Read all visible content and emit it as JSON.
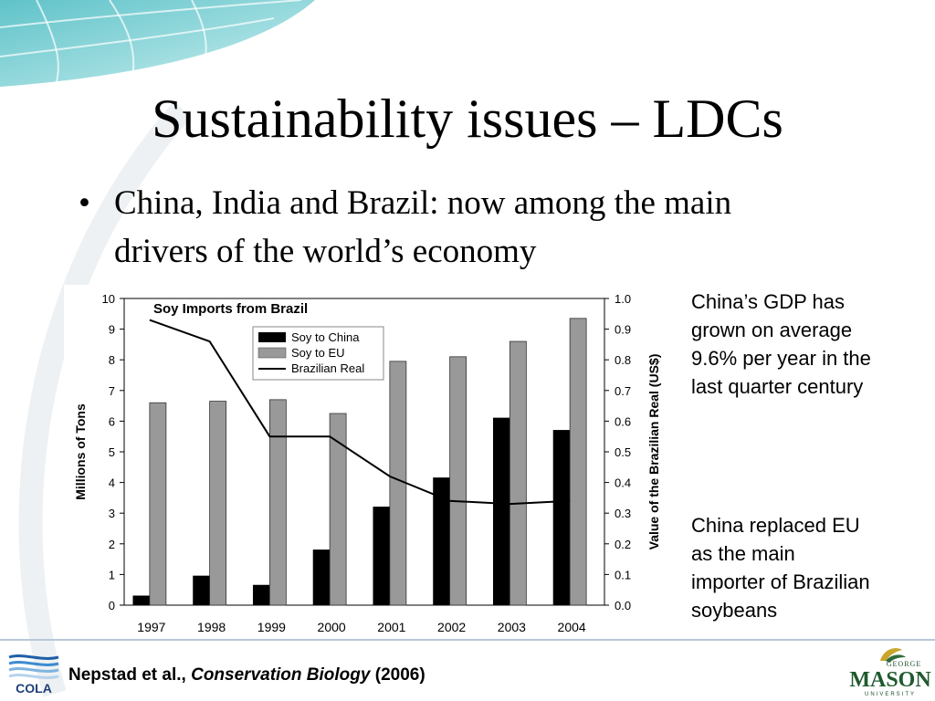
{
  "slide": {
    "title": "Sustainability issues – LDCs",
    "bullet_mark": "•",
    "bullet": "China, India and Brazil: now among the main drivers of the world’s economy"
  },
  "notes": [
    "China’s GDP has grown on average 9.6% per year in the last quarter century",
    "China replaced EU as the main importer of Brazilian soybeans"
  ],
  "citation": {
    "authors": "Nepstad et al.,",
    "journal": "Conservation Biology",
    "year": "(2006)"
  },
  "logos": {
    "cola": "COLA",
    "mason_top": "GEORGE",
    "mason_main": "MASON",
    "mason_bottom": "UNIVERSITY"
  },
  "chart_data": {
    "type": "bar",
    "title": "Soy Imports from Brazil",
    "categories": [
      "1997",
      "1998",
      "1999",
      "2000",
      "2001",
      "2002",
      "2003",
      "2004"
    ],
    "series": [
      {
        "name": "Soy to China",
        "kind": "bar",
        "axis": "left",
        "color": "#000000",
        "values": [
          0.3,
          0.95,
          0.65,
          1.8,
          3.2,
          4.15,
          6.1,
          5.7
        ]
      },
      {
        "name": "Soy to EU",
        "kind": "bar",
        "axis": "left",
        "color": "#999999",
        "values": [
          6.6,
          6.65,
          6.7,
          6.25,
          7.95,
          8.1,
          8.6,
          9.35
        ]
      },
      {
        "name": "Brazilian Real",
        "kind": "line",
        "axis": "right",
        "color": "#000000",
        "values": [
          0.93,
          0.86,
          0.55,
          0.55,
          0.42,
          0.34,
          0.33,
          0.34
        ]
      }
    ],
    "ylabel": "Millions of Tons",
    "ylim": [
      0,
      10
    ],
    "yticks": [
      "0",
      "1",
      "2",
      "3",
      "4",
      "5",
      "6",
      "7",
      "8",
      "9",
      "10"
    ],
    "y2label": "Value of the Brazilian Real (US$)",
    "y2lim": [
      0,
      1
    ],
    "y2ticks": [
      "0.0",
      "0.1",
      "0.2",
      "0.3",
      "0.4",
      "0.5",
      "0.6",
      "0.7",
      "0.8",
      "0.9",
      "1.0"
    ],
    "legend": "top-left",
    "grid": false
  }
}
